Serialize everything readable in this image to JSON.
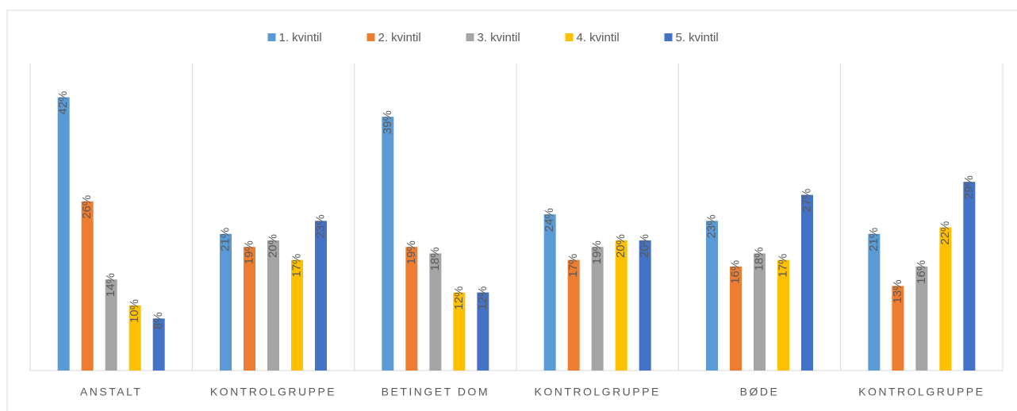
{
  "chart_data": {
    "type": "bar",
    "categories": [
      "ANSTALT",
      "KONTROLGRUPPE",
      "BETINGET DOM",
      "KONTROLGRUPPE",
      "BØDE",
      "KONTROLGRUPPE"
    ],
    "series": [
      {
        "name": "1. kvintil",
        "color": "#5b9bd5",
        "values": [
          42,
          21,
          39,
          24,
          23,
          21
        ],
        "value_labels": [
          "42%",
          "21%",
          "39%",
          "24%",
          "23%",
          "21%"
        ]
      },
      {
        "name": "2. kvintil",
        "color": "#ed7d31",
        "values": [
          26,
          19,
          19,
          17,
          16,
          13
        ],
        "value_labels": [
          "26%",
          "19%",
          "19%",
          "17%",
          "16%",
          "13%"
        ]
      },
      {
        "name": "3. kvintil",
        "color": "#a5a5a5",
        "values": [
          14,
          20,
          18,
          19,
          18,
          16
        ],
        "value_labels": [
          "14%",
          "20%",
          "18%",
          "19%",
          "18%",
          "16%"
        ]
      },
      {
        "name": "4. kvintil",
        "color": "#ffc000",
        "values": [
          10,
          17,
          12,
          20,
          17,
          22
        ],
        "value_labels": [
          "10%",
          "17%",
          "12%",
          "20%",
          "17%",
          "22%"
        ]
      },
      {
        "name": "5. kvintil",
        "color": "#4472c4",
        "values": [
          8,
          23,
          12,
          20,
          27,
          29
        ],
        "value_labels": [
          "8%",
          "23%",
          "12%",
          "20%",
          "27%",
          "29%"
        ]
      }
    ],
    "ylim": [
      0,
      45
    ],
    "legend": "top"
  }
}
